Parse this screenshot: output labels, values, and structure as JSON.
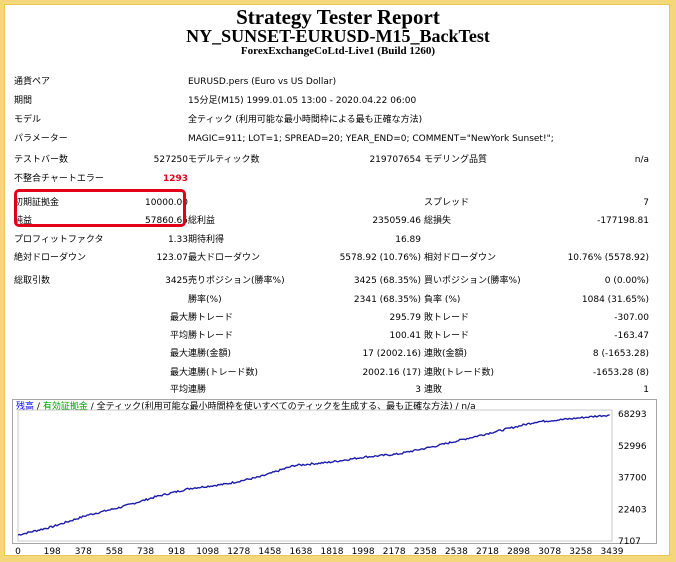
{
  "report": {
    "title": "Strategy Tester Report",
    "subtitle": "NY_SUNSET-EURUSD-M15_BackTest",
    "build": "ForexExchangeCoLtd-Live1 (Build 1260)"
  },
  "info": [
    {
      "label": "通貨ペア",
      "value": "EURUSD.pers (Euro vs US Dollar)"
    },
    {
      "label": "期間",
      "value": "15分足(M15) 1999.01.05 13:00 - 2020.04.22 06:00"
    },
    {
      "label": "モデル",
      "value": "全ティック (利用可能な最小時間枠による最も正確な方法)"
    },
    {
      "label": "パラメーター",
      "value": "MAGIC=911; LOT=1; SPREAD=20; YEAR_END=0; COMMENT=\"NewYork Sunset!\";"
    }
  ],
  "stats": {
    "bars_label": "テストバー数",
    "bars_value": "527250",
    "ticks_label": "モデルティック数",
    "ticks_value": "219707654",
    "quality_label": "モデリング品質",
    "quality_value": "n/a",
    "mismatch_label": "不整合チャートエラー",
    "mismatch_value": "1293",
    "deposit_label": "初期証拠金",
    "deposit_value": "10000.00",
    "spread_label": "スプレッド",
    "spread_value": "7",
    "netprofit_label": "純益",
    "netprofit_value": "57860.65",
    "grossprofit_label": "総利益",
    "grossprofit_value": "235059.46",
    "grossloss_label": "総損失",
    "grossloss_value": "-177198.81",
    "pf_label": "プロフィットファクタ",
    "pf_value": "1.33",
    "payoff_label": "期待利得",
    "payoff_value": "16.89",
    "absdd_label": "絶対ドローダウン",
    "absdd_value": "123.07",
    "maxdd_label": "最大ドローダウン",
    "maxdd_value": "5578.92 (10.76%)",
    "reldd_label": "相対ドローダウン",
    "reldd_value": "10.76% (5578.92)",
    "trades_label": "総取引数",
    "trades_value": "3425",
    "short_label": "売りポジション(勝率%)",
    "short_value": "3425 (68.35%)",
    "long_label": "買いポジション(勝率%)",
    "long_value": "0 (0.00%)",
    "win_label": "勝率(%)",
    "win_value": "2341 (68.35%)",
    "loss_label": "負率 (%)",
    "loss_value": "1084 (31.65%)",
    "largest": "最大",
    "largest_win_label": "勝トレード",
    "largest_win_value": "295.79",
    "largest_loss_label": "敗トレード",
    "largest_loss_value": "-307.00",
    "average": "平均",
    "avg_win_label": "勝トレード",
    "avg_win_value": "100.41",
    "avg_loss_label": "敗トレード",
    "avg_loss_value": "-163.47",
    "maxconswin_label": "連勝(金額)",
    "maxconswin_value": "17 (2002.16)",
    "maxconsloss_label": "連敗(金額)",
    "maxconsloss_value": "8 (-1653.28)",
    "maxconsprofit_label": "連勝(トレード数)",
    "maxconsprofit_value": "2002.16 (17)",
    "maxconslossamt_label": "連敗(トレード数)",
    "maxconslossamt_value": "-1653.28 (8)",
    "avgconswin_label": "連勝",
    "avgconswin_value": "3",
    "avgconsloss_label": "連敗",
    "avgconsloss_value": "1"
  },
  "legend": {
    "balance": "残高",
    "equity": "有効証拠金",
    "rest": "全ティック(利用可能な最小時間枠を使いすべてのティックを生成する、最も正確な方法)",
    "sep": "/",
    "na": "n/a"
  },
  "colors": {
    "balance": "#0000ff",
    "equity": "#00a000",
    "line": "#1c1ca8",
    "highlight": "#e3001b"
  },
  "chart_data": {
    "type": "line",
    "series": [
      {
        "name": "残高",
        "x": [
          0,
          200,
          400,
          600,
          800,
          1000,
          1200,
          1400,
          1600,
          1800,
          2000,
          2200,
          2400,
          2600,
          2800,
          3000,
          3200,
          3425
        ],
        "values": [
          10000,
          14000,
          19500,
          23500,
          28500,
          32500,
          34500,
          38000,
          43500,
          45000,
          47500,
          49000,
          52500,
          56500,
          60500,
          64500,
          66000,
          67860
        ]
      }
    ],
    "yticks": [
      7107,
      22403,
      37700,
      52996,
      68293
    ],
    "xticks": [
      0,
      198,
      378,
      558,
      738,
      918,
      1098,
      1278,
      1458,
      1638,
      1818,
      1998,
      2178,
      2358,
      2538,
      2718,
      2898,
      3078,
      3258,
      3439
    ],
    "ylim": [
      7107,
      68293
    ],
    "xlim": [
      0,
      3439
    ]
  }
}
